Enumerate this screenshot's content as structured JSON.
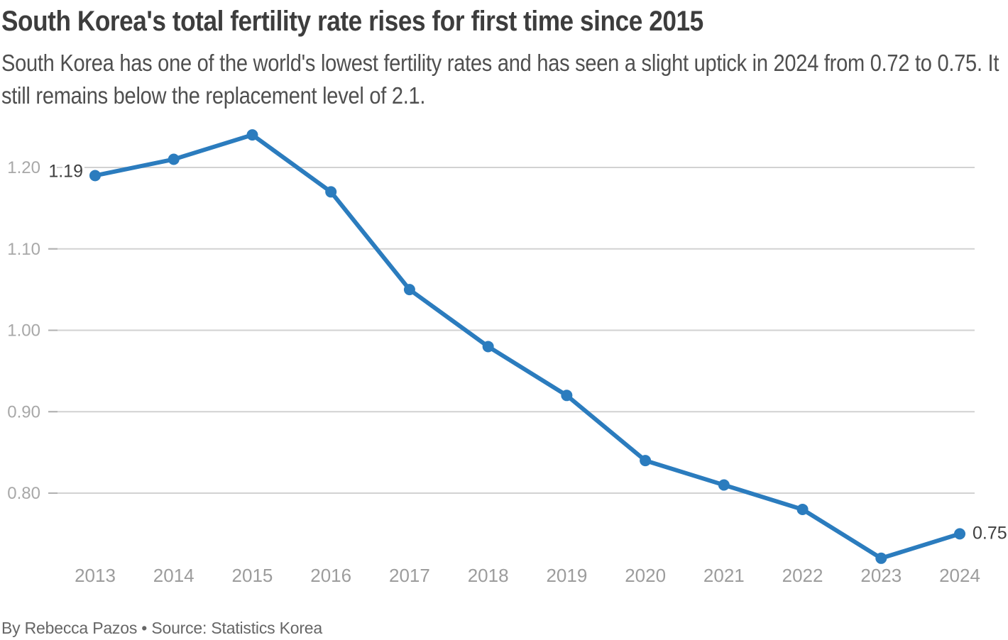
{
  "header": {
    "title": "South Korea's total fertility rate rises for first time since 2015",
    "subtitle": "South Korea has one of the world's lowest fertility rates and has seen a slight uptick in 2024 from 0.72 to 0.75. It still remains below the replacement level of 2.1."
  },
  "footer": {
    "byline": "By Rebecca Pazos • Source: Statistics Korea"
  },
  "colors": {
    "line": "#2b7cbe",
    "grid": "#d2d2d2",
    "annotation_text": "#3f3f3f"
  },
  "chart_data": {
    "type": "line",
    "title": "South Korea's total fertility rate rises for first time since 2015",
    "xlabel": "",
    "ylabel": "",
    "categories": [
      "2013",
      "2014",
      "2015",
      "2016",
      "2017",
      "2018",
      "2019",
      "2020",
      "2021",
      "2022",
      "2023",
      "2024"
    ],
    "series": [
      {
        "name": "Total fertility rate",
        "values": [
          1.19,
          1.21,
          1.24,
          1.17,
          1.05,
          0.98,
          0.92,
          0.84,
          0.81,
          0.78,
          0.72,
          0.75
        ]
      }
    ],
    "y_ticks": [
      0.8,
      0.9,
      1.0,
      1.1,
      1.2
    ],
    "y_tick_labels": [
      "0.80",
      "0.90",
      "1.00",
      "1.10",
      "1.20"
    ],
    "ylim": [
      0.7,
      1.26
    ],
    "grid": "horizontal-only",
    "legend_position": "none",
    "line_color": "#2b7cbe",
    "point_labels": [
      {
        "index": 0,
        "label": "1.19",
        "side": "left"
      },
      {
        "index": 11,
        "label": "0.75",
        "side": "right"
      }
    ]
  }
}
